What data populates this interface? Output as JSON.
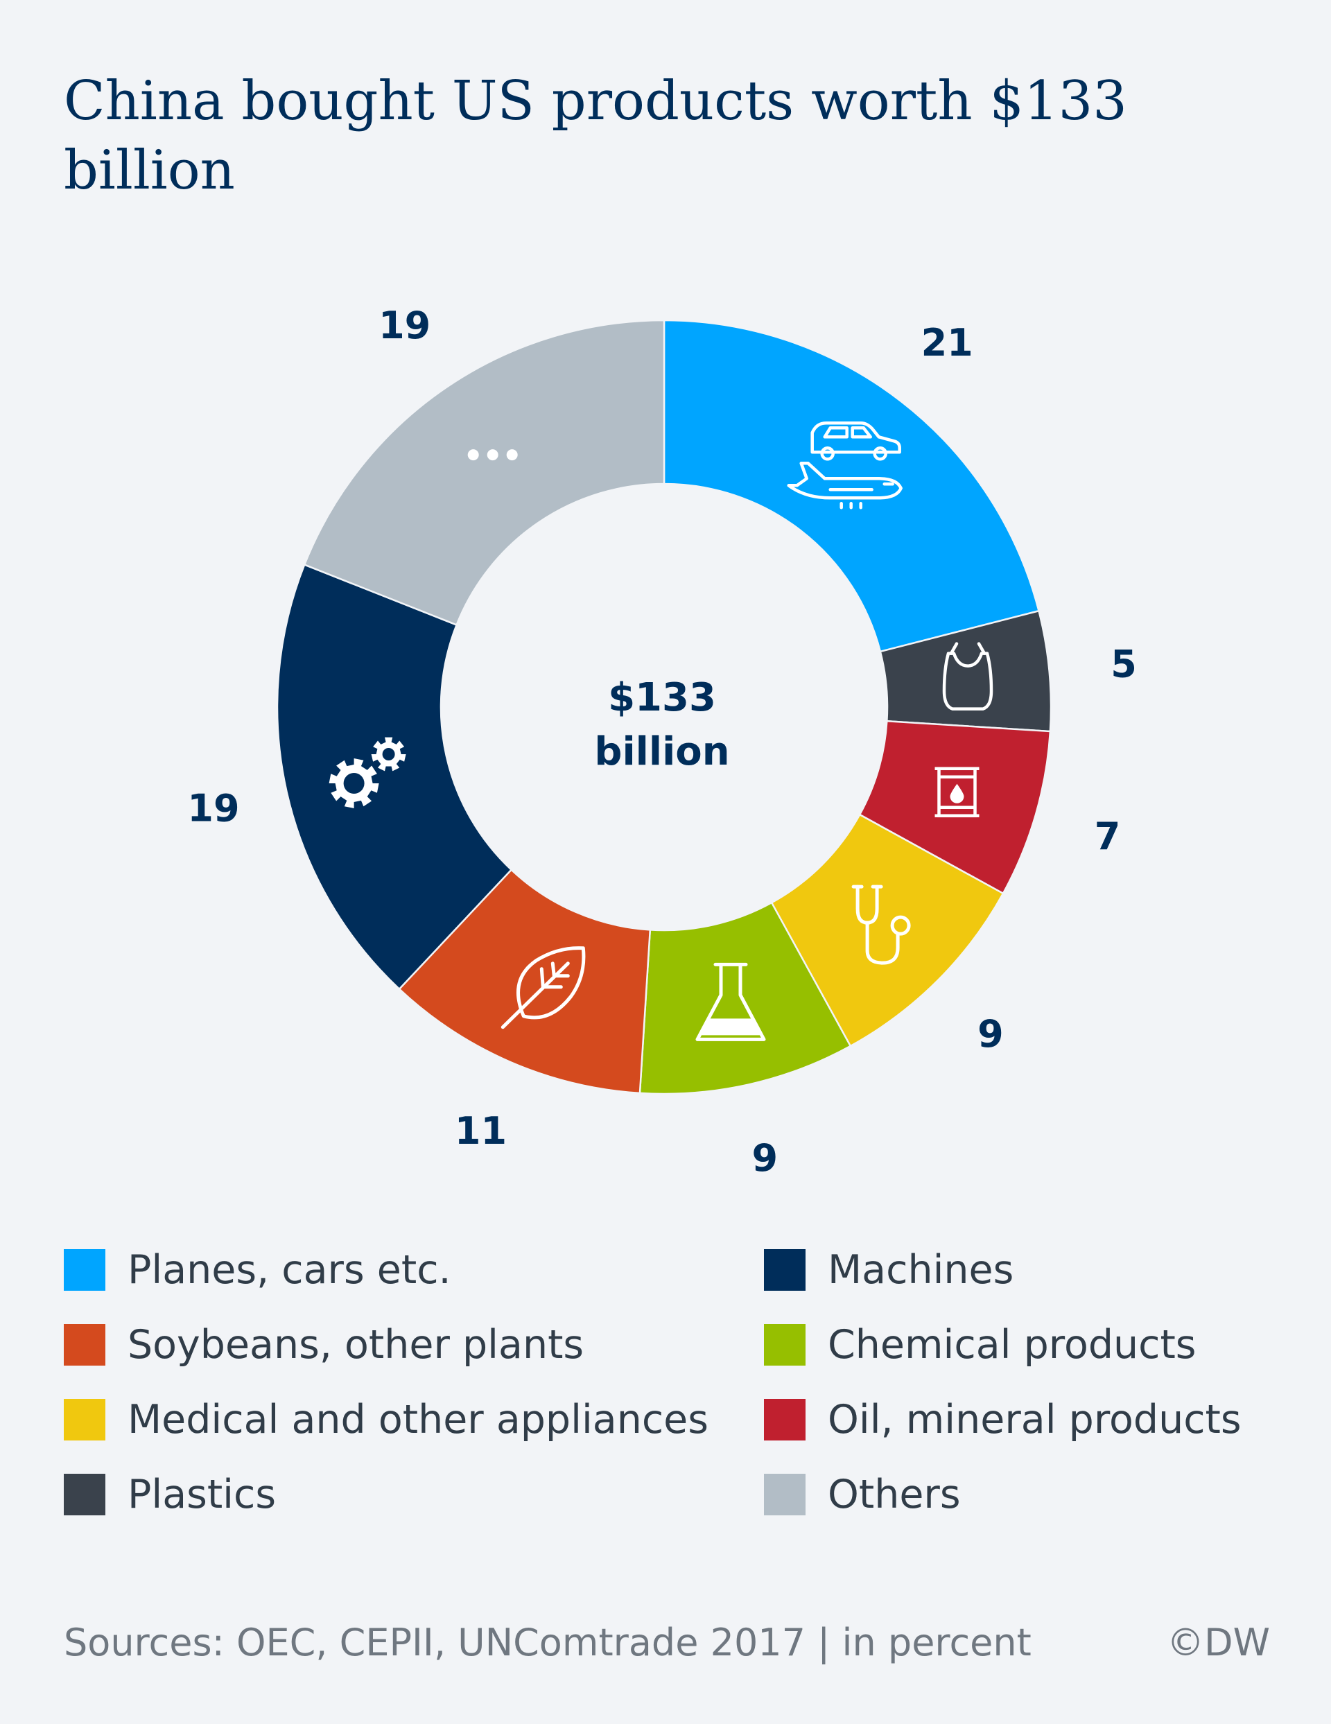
{
  "title": "China bought US products worth $133 billion",
  "chart_data": {
    "type": "pie",
    "variant": "donut",
    "unit": "in percent",
    "center_label": [
      "$133",
      "billion"
    ],
    "start": "12 o'clock, clockwise",
    "slices": [
      {
        "category": "Planes, cars etc.",
        "value": 21,
        "color": "#00a5ff",
        "icon": "car-plane-icon"
      },
      {
        "category": "Plastics",
        "value": 5,
        "color": "#3a424c",
        "icon": "plastic-bag-icon"
      },
      {
        "category": "Oil, mineral products",
        "value": 7,
        "color": "#c0202f",
        "icon": "oil-barrel-icon"
      },
      {
        "category": "Medical and other appliances",
        "value": 9,
        "color": "#f0c80f",
        "icon": "stethoscope-icon"
      },
      {
        "category": "Chemical products",
        "value": 9,
        "color": "#96bf00",
        "icon": "flask-icon"
      },
      {
        "category": "Soybeans, other plants",
        "value": 11,
        "color": "#d44a1e",
        "icon": "leaf-icon"
      },
      {
        "category": "Machines",
        "value": 19,
        "color": "#002d5a",
        "icon": "gears-icon"
      },
      {
        "category": "Others",
        "value": 19,
        "color": "#b2bdc6",
        "icon": "ellipsis-icon"
      }
    ],
    "legend": {
      "placement": "bottom",
      "entries": [
        "Planes, cars etc.",
        "Machines",
        "Soybeans, other plants",
        "Chemical products",
        "Medical and other appliances",
        "Oil, mineral products",
        "Plastics",
        "Others"
      ]
    }
  },
  "footer": {
    "source": "Sources: OEC, CEPII, UNComtrade 2017 | in percent",
    "credit": "©DW"
  }
}
